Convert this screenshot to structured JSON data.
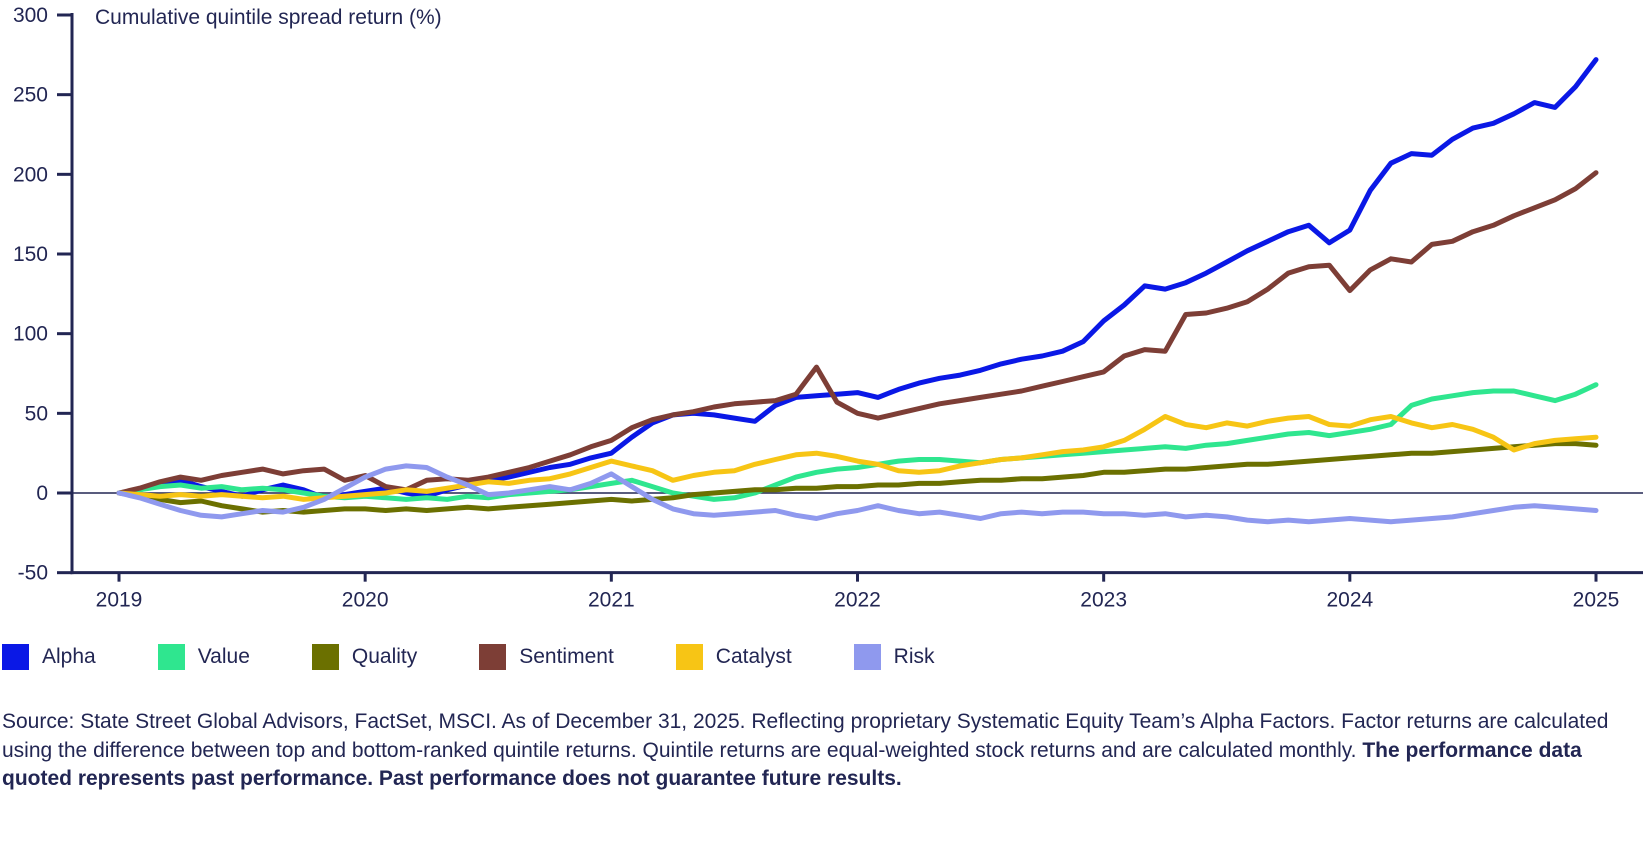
{
  "title": "Cumulative quintile spread return (%)",
  "colors": {
    "text": "#222653",
    "axis": "#222653",
    "background": "#ffffff"
  },
  "chart_data": {
    "type": "line",
    "title": "Cumulative quintile spread return (%)",
    "xlabel": "",
    "ylabel": "Cumulative quintile spread return (%)",
    "x_unit": "monthly",
    "x_tick_labels": [
      "2019",
      "2020",
      "2021",
      "2022",
      "2023",
      "2024",
      "2025"
    ],
    "y_ticks": [
      300,
      250,
      200,
      150,
      100,
      50,
      0,
      -50
    ],
    "ylim": [
      -50,
      300
    ],
    "grid": false,
    "legend_position": "bottom",
    "series": [
      {
        "name": "Alpha",
        "color": "#0a18e6",
        "values": [
          0,
          2,
          5,
          8,
          4,
          1,
          -2,
          2,
          5,
          2,
          -3,
          -1,
          1,
          3,
          0,
          -2,
          2,
          5,
          8,
          10,
          13,
          16,
          18,
          22,
          25,
          35,
          44,
          49,
          50,
          49,
          47,
          45,
          55,
          60,
          61,
          62,
          63,
          60,
          65,
          69,
          72,
          74,
          77,
          81,
          84,
          86,
          89,
          95,
          108,
          118,
          130,
          128,
          132,
          138,
          145,
          152,
          158,
          164,
          168,
          157,
          165,
          190,
          207,
          213,
          212,
          222,
          229,
          232,
          238,
          245,
          242,
          255,
          272
        ]
      },
      {
        "name": "Value",
        "color": "#2fe68f",
        "values": [
          0,
          2,
          4,
          5,
          3,
          4,
          2,
          3,
          2,
          0,
          -2,
          -3,
          -2,
          -3,
          -4,
          -3,
          -4,
          -2,
          -3,
          -1,
          0,
          1,
          2,
          4,
          6,
          8,
          4,
          0,
          -2,
          -4,
          -3,
          0,
          5,
          10,
          13,
          15,
          16,
          18,
          20,
          21,
          21,
          20,
          19,
          21,
          22,
          23,
          24,
          25,
          26,
          27,
          28,
          29,
          28,
          30,
          31,
          33,
          35,
          37,
          38,
          36,
          38,
          40,
          43,
          55,
          59,
          61,
          63,
          64,
          64,
          61,
          58,
          62,
          68
        ]
      },
      {
        "name": "Quality",
        "color": "#6b7000",
        "values": [
          0,
          -2,
          -4,
          -6,
          -5,
          -8,
          -10,
          -12,
          -11,
          -12,
          -11,
          -10,
          -10,
          -11,
          -10,
          -11,
          -10,
          -9,
          -10,
          -9,
          -8,
          -7,
          -6,
          -5,
          -4,
          -5,
          -4,
          -3,
          -1,
          0,
          1,
          2,
          2,
          3,
          3,
          4,
          4,
          5,
          5,
          6,
          6,
          7,
          8,
          8,
          9,
          9,
          10,
          11,
          13,
          13,
          14,
          15,
          15,
          16,
          17,
          18,
          18,
          19,
          20,
          21,
          22,
          23,
          24,
          25,
          25,
          26,
          27,
          28,
          29,
          30,
          31,
          31,
          30
        ]
      },
      {
        "name": "Sentiment",
        "color": "#7d3e36",
        "values": [
          0,
          3,
          7,
          10,
          8,
          11,
          13,
          15,
          12,
          14,
          15,
          8,
          11,
          4,
          2,
          8,
          9,
          8,
          10,
          13,
          16,
          20,
          24,
          29,
          33,
          41,
          46,
          49,
          51,
          54,
          56,
          57,
          58,
          62,
          79,
          57,
          50,
          47,
          50,
          53,
          56,
          58,
          60,
          62,
          64,
          67,
          70,
          73,
          76,
          86,
          90,
          89,
          112,
          113,
          116,
          120,
          128,
          138,
          142,
          143,
          127,
          140,
          147,
          145,
          156,
          158,
          164,
          168,
          174,
          179,
          184,
          191,
          201
        ]
      },
      {
        "name": "Catalyst",
        "color": "#f7c515",
        "values": [
          0,
          -1,
          -2,
          -1,
          -2,
          -1,
          -2,
          -3,
          -2,
          -4,
          -3,
          -2,
          -1,
          0,
          2,
          1,
          3,
          5,
          7,
          6,
          8,
          9,
          12,
          16,
          20,
          17,
          14,
          8,
          11,
          13,
          14,
          18,
          21,
          24,
          25,
          23,
          20,
          18,
          14,
          13,
          14,
          17,
          19,
          21,
          22,
          24,
          26,
          27,
          29,
          33,
          40,
          48,
          43,
          41,
          44,
          42,
          45,
          47,
          48,
          43,
          42,
          46,
          48,
          44,
          41,
          43,
          40,
          35,
          27,
          31,
          33,
          34,
          35
        ]
      },
      {
        "name": "Risk",
        "color": "#8f99ee",
        "values": [
          0,
          -3,
          -7,
          -11,
          -14,
          -15,
          -13,
          -11,
          -12,
          -9,
          -4,
          3,
          10,
          15,
          17,
          16,
          10,
          5,
          -1,
          0,
          2,
          4,
          2,
          6,
          12,
          4,
          -4,
          -10,
          -13,
          -14,
          -13,
          -12,
          -11,
          -14,
          -16,
          -13,
          -11,
          -8,
          -11,
          -13,
          -12,
          -14,
          -16,
          -13,
          -12,
          -13,
          -12,
          -12,
          -13,
          -13,
          -14,
          -13,
          -15,
          -14,
          -15,
          -17,
          -18,
          -17,
          -18,
          -17,
          -16,
          -17,
          -18,
          -17,
          -16,
          -15,
          -13,
          -11,
          -9,
          -8,
          -9,
          -10,
          -11
        ]
      }
    ]
  },
  "footer": {
    "normal": "Source: State Street Global Advisors, FactSet, MSCI. As of December 31, 2025. Reflecting proprietary Systematic Equity Team’s Alpha Factors. Factor returns are calculated using the difference between top and bottom-ranked quintile returns. Quintile returns are equal-weighted stock returns and are calculated monthly. ",
    "bold": "The performance data quoted represents past performance. Past performance does not guarantee future results."
  }
}
